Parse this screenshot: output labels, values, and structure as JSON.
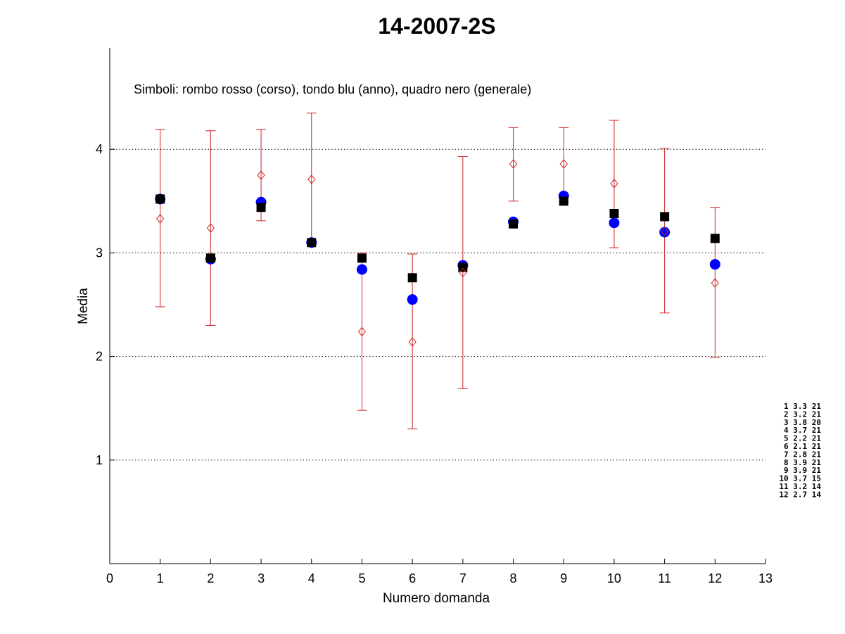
{
  "chart_data": {
    "type": "scatter",
    "title": "14-2007-2S",
    "xlabel": "Numero domanda",
    "ylabel": "Media",
    "xlim": [
      0,
      13
    ],
    "ylim": [
      0,
      4.98
    ],
    "x_ticks": [
      0,
      1,
      2,
      3,
      4,
      5,
      6,
      7,
      8,
      9,
      10,
      11,
      12,
      13
    ],
    "y_ticks": [
      1,
      2,
      3,
      4
    ],
    "grid": "horizontal dotted at y ticks",
    "annotation": "Simboli: rombo rosso (corso), tondo blu (anno), quadro nero (generale)",
    "x": [
      1,
      2,
      3,
      4,
      5,
      6,
      7,
      8,
      9,
      10,
      11,
      12
    ],
    "series": [
      {
        "marker": "diamond-open",
        "color": "#cc2222",
        "values": [
          3.33,
          3.24,
          3.75,
          3.71,
          2.24,
          2.14,
          2.81,
          3.86,
          3.86,
          3.67,
          3.21,
          2.71
        ],
        "error_low": [
          2.48,
          2.3,
          3.31,
          3.1,
          1.48,
          1.3,
          1.69,
          3.5,
          3.5,
          3.05,
          2.42,
          1.99
        ],
        "error_high": [
          4.19,
          4.18,
          4.19,
          4.35,
          3.0,
          2.99,
          3.93,
          4.21,
          4.21,
          4.28,
          4.01,
          3.44
        ]
      },
      {
        "marker": "circle-filled",
        "color": "#0000ff",
        "values": [
          3.52,
          2.94,
          3.49,
          3.1,
          2.84,
          2.55,
          2.88,
          3.3,
          3.55,
          3.29,
          3.2,
          2.89
        ]
      },
      {
        "marker": "square-filled",
        "color": "#000000",
        "values": [
          3.52,
          2.95,
          3.44,
          3.1,
          2.95,
          2.76,
          2.86,
          3.28,
          3.5,
          3.38,
          3.35,
          3.14
        ]
      }
    ],
    "side_table": [
      "1  3.3  21",
      "2  3.2  21",
      "3  3.8  20",
      "4  3.7  21",
      "5  2.2  21",
      "6  2.1  21",
      "7  2.8  21",
      "8  3.9  21",
      "9  3.9  21",
      "10  3.7  15",
      "11  3.2  14",
      "12  2.7  14"
    ]
  }
}
